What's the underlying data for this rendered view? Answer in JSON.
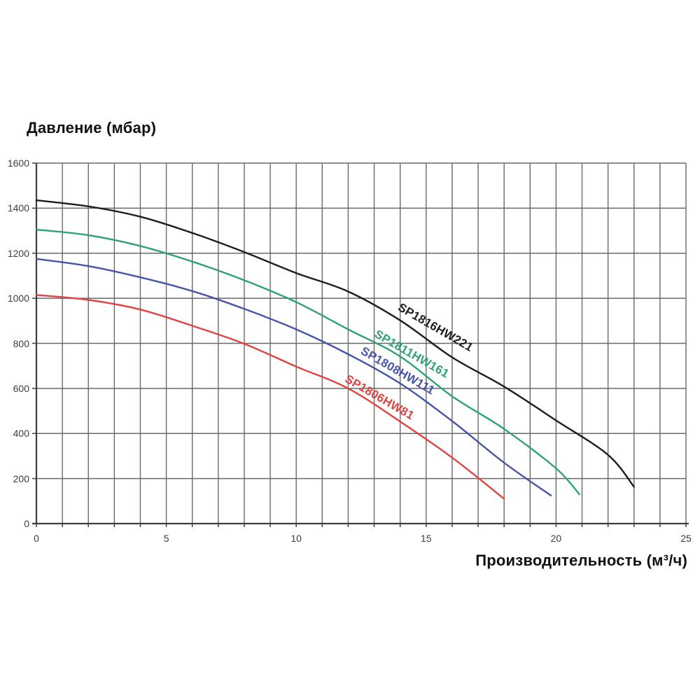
{
  "chart_data": {
    "type": "line",
    "title": "Давление (мбар)",
    "xlabel": "Производительность (м³/ч)",
    "ylabel": "Давление (мбар)",
    "xlim": [
      0,
      25
    ],
    "ylim": [
      0,
      1600
    ],
    "x_major_ticks": [
      0,
      5,
      10,
      15,
      20,
      25
    ],
    "x_minor_step": 1,
    "y_ticks": [
      0,
      200,
      400,
      600,
      800,
      1000,
      1200,
      1400,
      1600
    ],
    "grid": true,
    "legend_position": "labels-on-curves",
    "grid_color": "#686868",
    "axis_color": "#3f3f3f",
    "tick_label_color": "#3d3d3d",
    "series": [
      {
        "name": "SP1816HW221",
        "color": "#1e1e1e",
        "x": [
          0,
          2,
          4,
          6,
          8,
          10,
          12,
          14,
          16,
          18,
          20,
          22,
          23
        ],
        "y": [
          1435,
          1408,
          1362,
          1290,
          1205,
          1112,
          1030,
          902,
          738,
          608,
          458,
          305,
          163
        ],
        "label_anchor": {
          "x": 15.36,
          "y": 870,
          "angle": 30
        }
      },
      {
        "name": "SP1811HW161",
        "color": "#2fa177",
        "x": [
          0,
          2,
          4,
          6,
          8,
          10,
          12,
          14,
          16,
          18,
          20,
          20.9
        ],
        "y": [
          1305,
          1280,
          1232,
          1163,
          1080,
          983,
          862,
          742,
          565,
          420,
          245,
          130
        ],
        "label_anchor": {
          "x": 14.44,
          "y": 752,
          "angle": 30
        }
      },
      {
        "name": "SP1808HW111",
        "color": "#4655a6",
        "x": [
          0,
          2,
          4,
          6,
          8,
          10,
          12,
          14,
          16,
          18,
          19.8
        ],
        "y": [
          1175,
          1143,
          1093,
          1032,
          953,
          862,
          752,
          622,
          455,
          270,
          125
        ],
        "label_anchor": {
          "x": 13.9,
          "y": 677,
          "angle": 30
        }
      },
      {
        "name": "SP1806HW81",
        "color": "#e04440",
        "x": [
          0,
          2,
          4,
          6,
          8,
          10,
          12,
          14,
          16,
          18
        ],
        "y": [
          1015,
          993,
          950,
          878,
          798,
          697,
          600,
          453,
          293,
          110
        ],
        "label_anchor": {
          "x": 13.2,
          "y": 559,
          "angle": 30
        }
      }
    ]
  }
}
